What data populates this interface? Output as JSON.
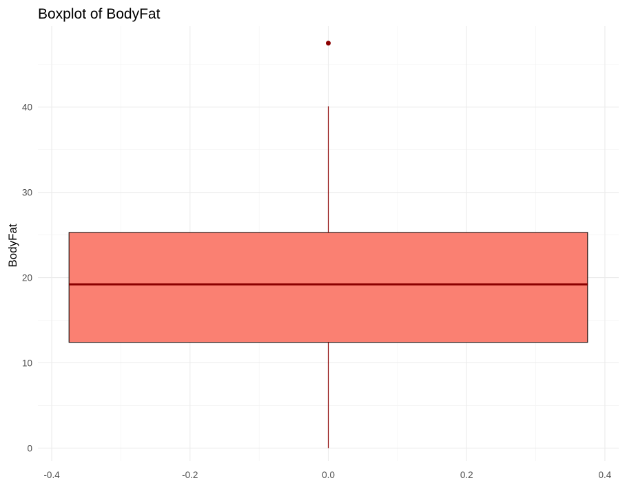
{
  "chart_data": {
    "type": "boxplot",
    "title": "Boxplot of BodyFat",
    "xlabel": "",
    "ylabel": "BodyFat",
    "x_ticks": [
      "-0.4",
      "-0.2",
      "0.0",
      "0.2",
      "0.4"
    ],
    "y_ticks": [
      "0",
      "10",
      "20",
      "30",
      "40"
    ],
    "xlim": [
      -0.42,
      0.42
    ],
    "ylim": [
      -1.5,
      49.5
    ],
    "x_tick_values": [
      -0.4,
      -0.2,
      0.0,
      0.2,
      0.4
    ],
    "y_tick_values": [
      0,
      10,
      20,
      30,
      40
    ],
    "grid": true,
    "box": {
      "x_center": 0.0,
      "half_width": 0.375,
      "min": 0.0,
      "q1": 12.4,
      "median": 19.2,
      "q3": 25.3,
      "max": 40.1,
      "outliers": [
        47.5
      ]
    },
    "colors": {
      "box_fill": "#fa8072",
      "box_border": "#000000",
      "median_line": "#8b0000",
      "whisker": "#8b0000",
      "outlier": "#8b0000"
    }
  }
}
